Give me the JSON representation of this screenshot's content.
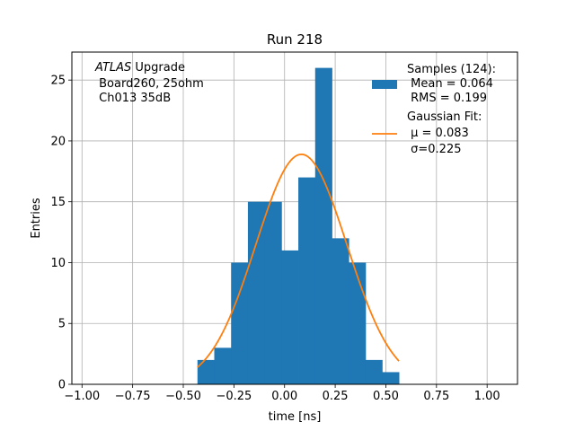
{
  "chart_data": {
    "type": "bar",
    "title": "Run 218",
    "xlabel": "time [ns]",
    "ylabel": "Entries",
    "xlim": [
      -1.05,
      1.15
    ],
    "ylim": [
      0,
      27.3
    ],
    "grid": true,
    "x_ticks": [
      -1.0,
      -0.75,
      -0.5,
      -0.25,
      0.0,
      0.25,
      0.5,
      0.75,
      1.0
    ],
    "x_tick_labels": [
      "−1.00",
      "−0.75",
      "−0.50",
      "−0.25",
      "0.00",
      "0.25",
      "0.50",
      "0.75",
      "1.00"
    ],
    "y_ticks": [
      0,
      5,
      10,
      15,
      20,
      25
    ],
    "y_tick_labels": [
      "0",
      "5",
      "10",
      "15",
      "20",
      "25"
    ],
    "histogram": {
      "name": "Samples (124):",
      "color": "#1f77b4",
      "bin_edges": [
        -0.43,
        -0.347,
        -0.264,
        -0.181,
        -0.098,
        -0.015,
        0.068,
        0.151,
        0.234,
        0.317,
        0.4,
        0.482,
        0.565
      ],
      "counts": [
        2,
        3,
        10,
        15,
        15,
        11,
        17,
        26,
        12,
        10,
        2,
        1
      ]
    },
    "fit": {
      "name": "Gaussian Fit:",
      "color": "#ff7f0e",
      "mu": 0.083,
      "sigma": 0.225,
      "amplitude": 18.9,
      "x_range": [
        -0.43,
        0.565
      ]
    },
    "legend_placement": "top-right",
    "legend": [
      {
        "label": "Samples (124):",
        "lines": [
          " Mean = 0.064",
          " RMS = 0.199"
        ]
      },
      {
        "label": "Gaussian Fit:",
        "lines": [
          " μ = 0.083",
          " σ=0.225"
        ]
      }
    ],
    "annotation": {
      "italic": "ATLAS",
      "rest": " Upgrade",
      "lines": [
        " Board260, 25ohm",
        " Ch013 35dB"
      ]
    }
  }
}
